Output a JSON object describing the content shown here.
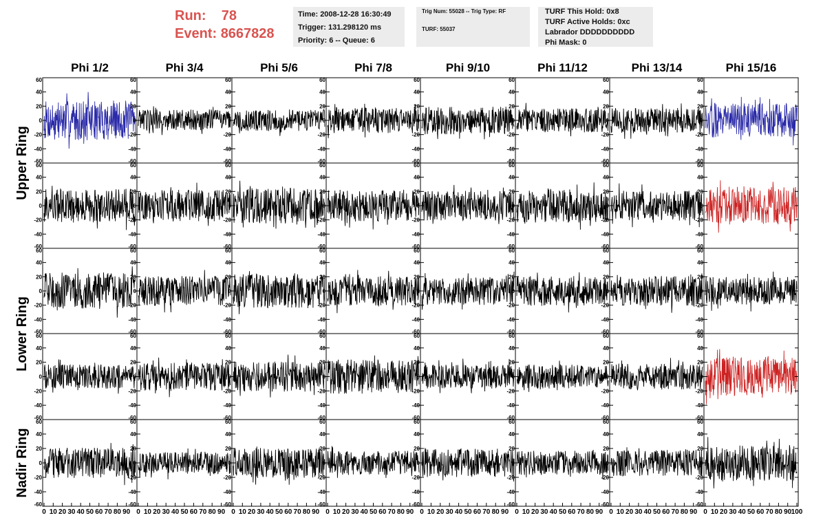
{
  "header": {
    "run_label": "Run:",
    "run_value": "78",
    "event_label": "Event:",
    "event_value": "8667828"
  },
  "info_time": {
    "time": "Time: 2008-12-28 16:30:49",
    "trigger": "Trigger: 131.298120 ms",
    "priority": "Priority: 6 -- Queue: 6"
  },
  "info_trig": {
    "trig": "Trig Num: 55028 -- Trig Type: RF",
    "turf": "TURF: 55037"
  },
  "info_turf": {
    "hold": "TURF This Hold: 0x8",
    "active": "TURF Active Holds: 0xc",
    "labrador": "Labrador DDDDDDDDDD",
    "phimask": "Phi Mask: 0"
  },
  "columns": [
    "Phi 1/2",
    "Phi 3/4",
    "Phi 5/6",
    "Phi 7/8",
    "Phi 9/10",
    "Phi 11/12",
    "Phi 13/14",
    "Phi 15/16"
  ],
  "rings": [
    "Upper Ring",
    "Lower Ring",
    "Nadir Ring"
  ],
  "y_ticks": [
    "60",
    "40",
    "20",
    "0",
    "-20",
    "-40",
    "-60"
  ],
  "x_ticks": [
    "0",
    "10",
    "20",
    "30",
    "40",
    "50",
    "60",
    "70",
    "80",
    "90",
    "100"
  ],
  "colors": {
    "trace_default": "#000000",
    "trace_blue": "#2a2aa8",
    "trace_red": "#cc2222",
    "run_text": "#d9534f",
    "info_bg": "#ececec"
  },
  "chart_data": {
    "type": "line",
    "title": "",
    "xlabel": "",
    "ylabel": "",
    "xlim": [
      0,
      100
    ],
    "ylim": [
      -60,
      60
    ],
    "panels": [
      {
        "row": 0,
        "col": 0,
        "color": "blue",
        "amp": 40
      },
      {
        "row": 0,
        "col": 1,
        "color": "black",
        "amp": 22
      },
      {
        "row": 0,
        "col": 2,
        "color": "black",
        "amp": 22
      },
      {
        "row": 0,
        "col": 3,
        "color": "black",
        "amp": 26
      },
      {
        "row": 0,
        "col": 4,
        "color": "black",
        "amp": 28
      },
      {
        "row": 0,
        "col": 5,
        "color": "black",
        "amp": 24
      },
      {
        "row": 0,
        "col": 6,
        "color": "black",
        "amp": 25
      },
      {
        "row": 0,
        "col": 7,
        "color": "blue",
        "amp": 34
      },
      {
        "row": 1,
        "col": 0,
        "color": "black",
        "amp": 34
      },
      {
        "row": 1,
        "col": 1,
        "color": "black",
        "amp": 32
      },
      {
        "row": 1,
        "col": 2,
        "color": "black",
        "amp": 36
      },
      {
        "row": 1,
        "col": 3,
        "color": "black",
        "amp": 32
      },
      {
        "row": 1,
        "col": 4,
        "color": "black",
        "amp": 30
      },
      {
        "row": 1,
        "col": 5,
        "color": "black",
        "amp": 34
      },
      {
        "row": 1,
        "col": 6,
        "color": "black",
        "amp": 30
      },
      {
        "row": 1,
        "col": 7,
        "color": "red",
        "amp": 38
      },
      {
        "row": 2,
        "col": 0,
        "color": "black",
        "amp": 36
      },
      {
        "row": 2,
        "col": 1,
        "color": "black",
        "amp": 30
      },
      {
        "row": 2,
        "col": 2,
        "color": "black",
        "amp": 34
      },
      {
        "row": 2,
        "col": 3,
        "color": "black",
        "amp": 30
      },
      {
        "row": 2,
        "col": 4,
        "color": "black",
        "amp": 28
      },
      {
        "row": 2,
        "col": 5,
        "color": "black",
        "amp": 30
      },
      {
        "row": 2,
        "col": 6,
        "color": "black",
        "amp": 30
      },
      {
        "row": 2,
        "col": 7,
        "color": "black",
        "amp": 28
      },
      {
        "row": 3,
        "col": 0,
        "color": "black",
        "amp": 24
      },
      {
        "row": 3,
        "col": 1,
        "color": "black",
        "amp": 28
      },
      {
        "row": 3,
        "col": 2,
        "color": "black",
        "amp": 30
      },
      {
        "row": 3,
        "col": 3,
        "color": "black",
        "amp": 34
      },
      {
        "row": 3,
        "col": 4,
        "color": "black",
        "amp": 24
      },
      {
        "row": 3,
        "col": 5,
        "color": "black",
        "amp": 24
      },
      {
        "row": 3,
        "col": 6,
        "color": "black",
        "amp": 26
      },
      {
        "row": 3,
        "col": 7,
        "color": "red",
        "amp": 38
      },
      {
        "row": 4,
        "col": 0,
        "color": "black",
        "amp": 30
      },
      {
        "row": 4,
        "col": 1,
        "color": "black",
        "amp": 22
      },
      {
        "row": 4,
        "col": 2,
        "color": "black",
        "amp": 30
      },
      {
        "row": 4,
        "col": 3,
        "color": "black",
        "amp": 24
      },
      {
        "row": 4,
        "col": 4,
        "color": "black",
        "amp": 28
      },
      {
        "row": 4,
        "col": 5,
        "color": "black",
        "amp": 24
      },
      {
        "row": 4,
        "col": 6,
        "color": "black",
        "amp": 26
      },
      {
        "row": 4,
        "col": 7,
        "color": "black",
        "amp": 36
      }
    ]
  }
}
